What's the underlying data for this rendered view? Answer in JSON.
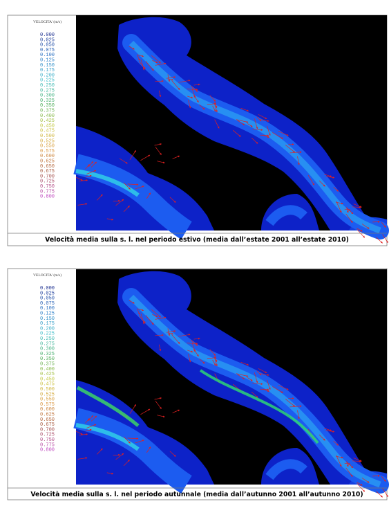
{
  "panels": [
    {
      "legend_title": "VELOCITA' (m/s)",
      "legend_values": [
        "0.000",
        "0.025",
        "0.050",
        "0.075",
        "0.100",
        "0.125",
        "0.150",
        "0.175",
        "0.200",
        "0.225",
        "0.250",
        "0.275",
        "0.300",
        "0.325",
        "0.350",
        "0.375",
        "0.400",
        "0.425",
        "0.450",
        "0.475",
        "0.500",
        "0.525",
        "0.550",
        "0.575",
        "0.600",
        "0.625",
        "0.650",
        "0.675",
        "0.700",
        "0.725",
        "0.750",
        "0.775",
        "0.800"
      ],
      "caption": "Velocità media sulla s. l. nel periodo estivo (media dall’estate 2001 all’estate 2010)"
    },
    {
      "legend_title": "VELOCITA' (m/s)",
      "legend_values": [
        "0.000",
        "0.025",
        "0.050",
        "0.075",
        "0.100",
        "0.125",
        "0.150",
        "0.175",
        "0.200",
        "0.225",
        "0.250",
        "0.275",
        "0.300",
        "0.325",
        "0.350",
        "0.375",
        "0.400",
        "0.425",
        "0.450",
        "0.475",
        "0.500",
        "0.525",
        "0.550",
        "0.575",
        "0.600",
        "0.625",
        "0.650",
        "0.675",
        "0.700",
        "0.725",
        "0.750",
        "0.775",
        "0.800"
      ],
      "caption": "Velocità media sulla s. l. nel periodo autunnale (media dall’autunno 2001 all’autunno 2010)"
    }
  ]
}
